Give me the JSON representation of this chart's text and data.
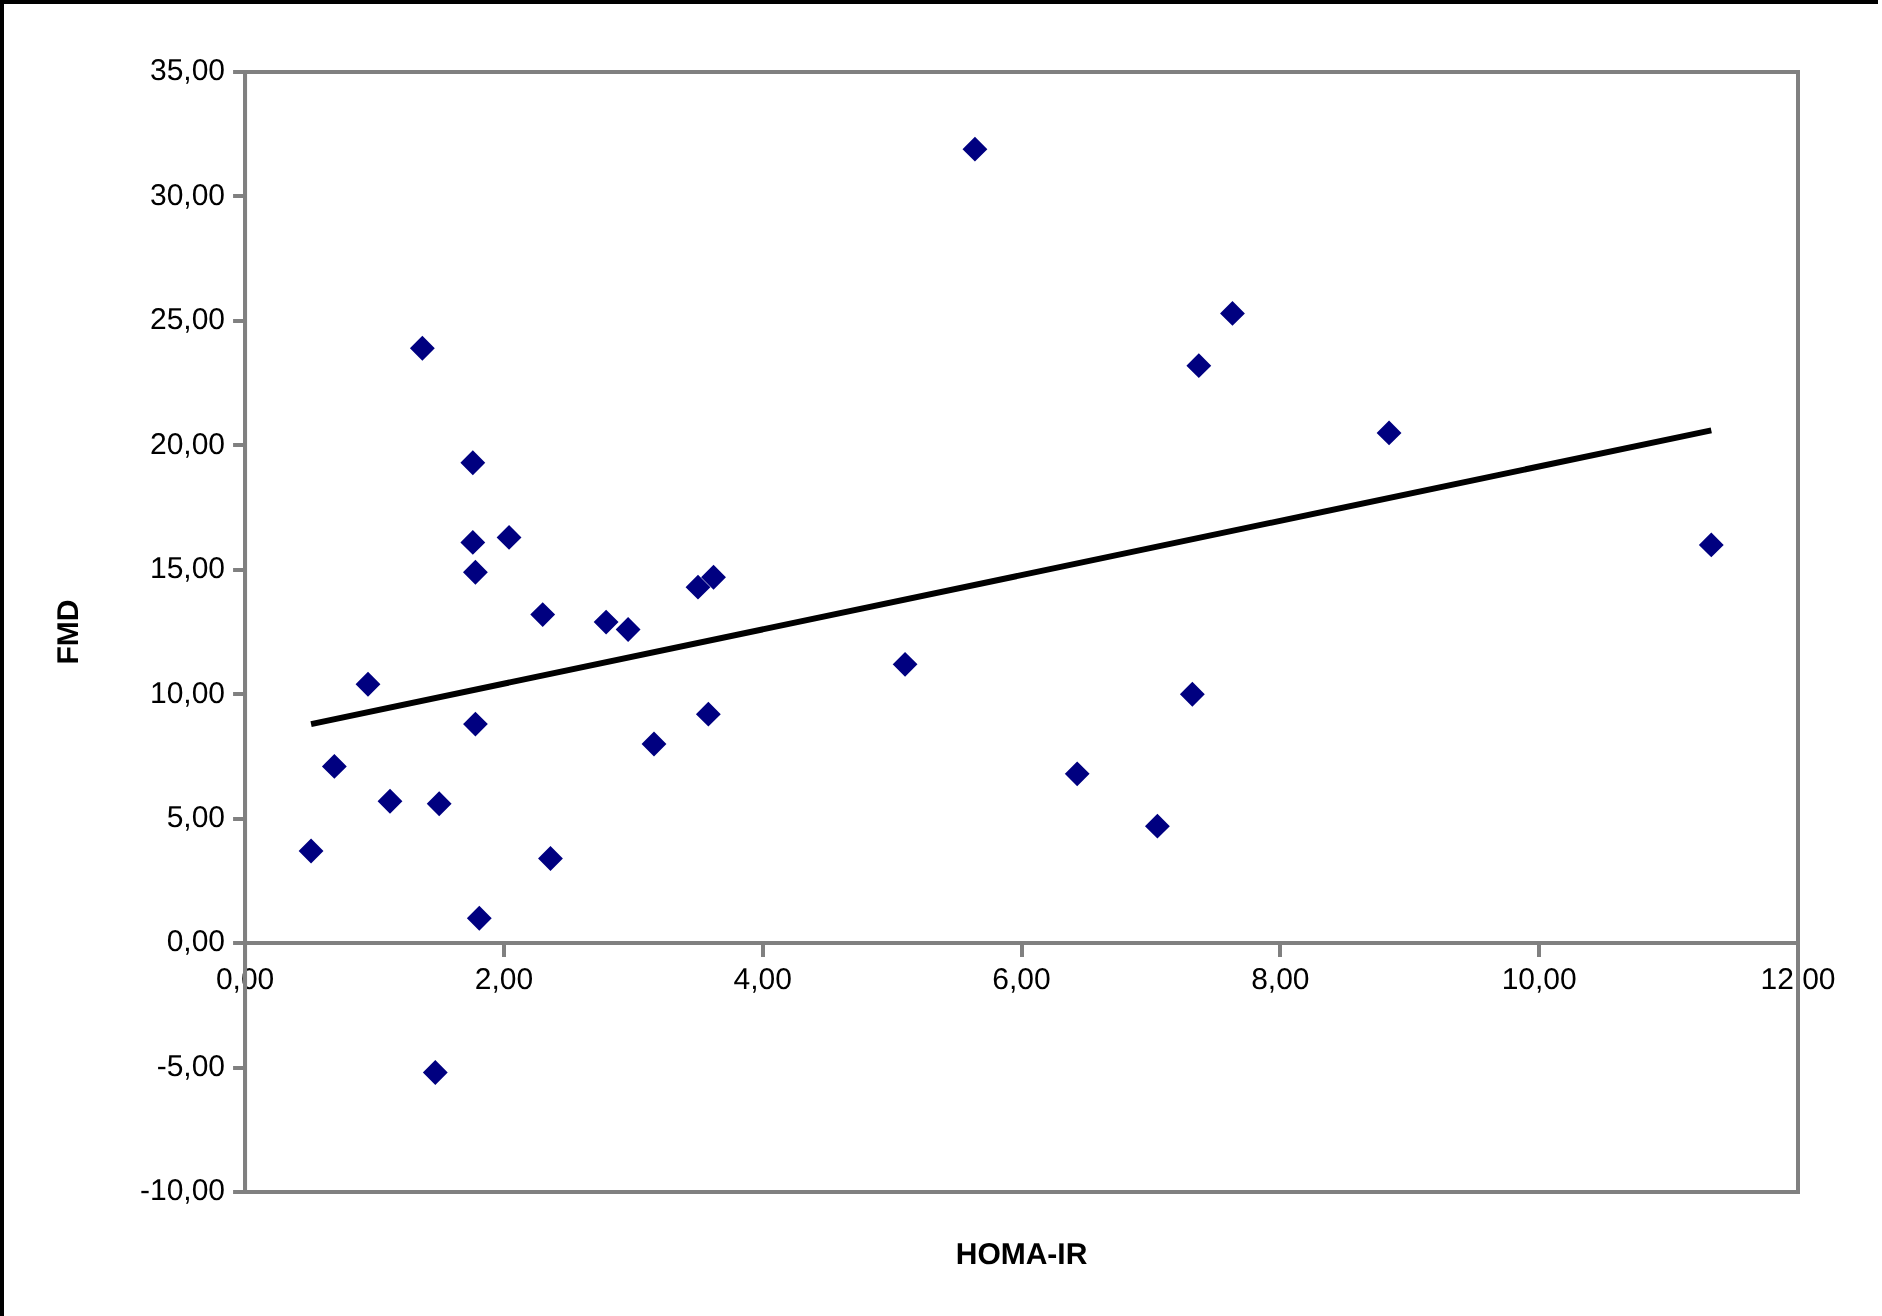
{
  "chart_data": {
    "type": "scatter",
    "xlabel": "HOMA-IR",
    "ylabel": "FMD",
    "xlim": [
      0,
      12
    ],
    "ylim": [
      -10,
      35
    ],
    "xticks": [
      {
        "value": 0,
        "label": "0,00"
      },
      {
        "value": 2,
        "label": "2,00"
      },
      {
        "value": 4,
        "label": "4,00"
      },
      {
        "value": 6,
        "label": "6,00"
      },
      {
        "value": 8,
        "label": "8,00"
      },
      {
        "value": 10,
        "label": "10,00"
      },
      {
        "value": 12,
        "label": "12,00"
      }
    ],
    "yticks": [
      {
        "value": -10,
        "label": "-10,00"
      },
      {
        "value": -5,
        "label": "-5,00"
      },
      {
        "value": 0,
        "label": "0,00"
      },
      {
        "value": 5,
        "label": "5,00"
      },
      {
        "value": 10,
        "label": "10,00"
      },
      {
        "value": 15,
        "label": "15,00"
      },
      {
        "value": 20,
        "label": "20,00"
      },
      {
        "value": 25,
        "label": "25,00"
      },
      {
        "value": 30,
        "label": "30,00"
      },
      {
        "value": 35,
        "label": "35,00"
      }
    ],
    "grid": false,
    "legend": false,
    "marker": "diamond",
    "series": [
      {
        "color": "#000080",
        "x": [
          0.51,
          0.69,
          0.95,
          1.12,
          1.37,
          1.5,
          1.47,
          1.76,
          1.76,
          1.78,
          1.78,
          1.81,
          2.04,
          2.3,
          2.36,
          2.79,
          2.96,
          3.16,
          3.5,
          3.62,
          3.58,
          5.1,
          5.64,
          6.43,
          7.05,
          7.32,
          7.37,
          7.63,
          8.84,
          11.33
        ],
        "values": [
          3.7,
          7.1,
          10.4,
          5.7,
          23.9,
          5.6,
          -5.2,
          19.3,
          16.1,
          14.9,
          8.8,
          1.0,
          16.3,
          13.2,
          3.4,
          12.9,
          12.6,
          8.0,
          14.3,
          14.7,
          9.2,
          11.2,
          31.9,
          6.8,
          4.7,
          10.0,
          23.2,
          25.3,
          20.5,
          16.0
        ]
      },
      {
        "type": "line",
        "color": "#000000",
        "line_style": "solid",
        "marker": "none",
        "x": [
          0.51,
          11.33
        ],
        "values": [
          8.8,
          20.6
        ]
      }
    ]
  }
}
